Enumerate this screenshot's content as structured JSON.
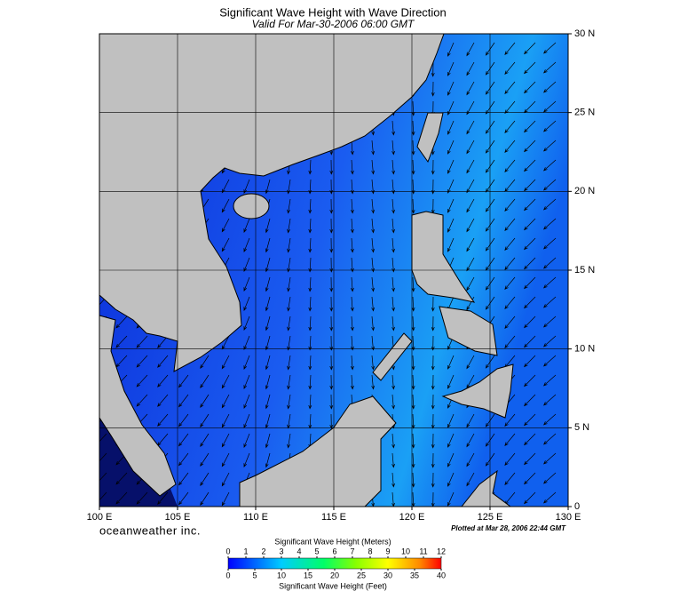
{
  "header": {
    "title": "Significant Wave Height with Wave Direction",
    "subtitle": "Valid For Mar-30-2006 06:00 GMT"
  },
  "map": {
    "lon_labels": [
      "100 E",
      "105 E",
      "110 E",
      "115 E",
      "120 E",
      "125 E",
      "130 E"
    ],
    "lat_labels": [
      "30 N",
      "25 N",
      "20 N",
      "15 N",
      "10 N",
      "5 N",
      "0"
    ]
  },
  "footer": {
    "brand": "oceanweather inc.",
    "plotted": "Plotted at Mar 28, 2006 22:44 GMT"
  },
  "legend": {
    "meters_title": "Significant Wave Height (Meters)",
    "meters_ticks": [
      0,
      1,
      2,
      3,
      4,
      5,
      6,
      7,
      8,
      9,
      10,
      11,
      12
    ],
    "feet_ticks": [
      0,
      5,
      10,
      15,
      20,
      25,
      30,
      35,
      40
    ],
    "feet_title": "Significant Wave Height (Feet)"
  }
}
